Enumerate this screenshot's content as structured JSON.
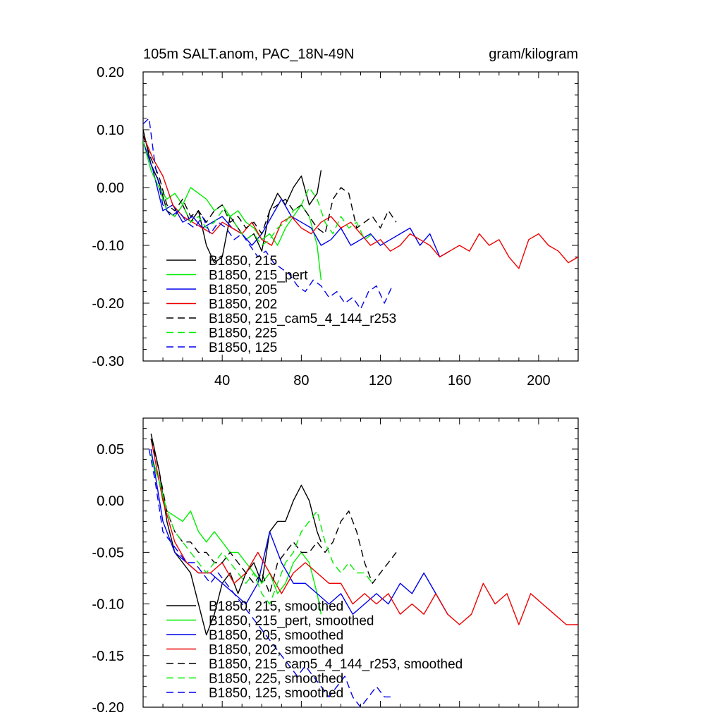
{
  "colors": {
    "black": "#000000",
    "green": "#00ee00",
    "blue": "#0000ee",
    "red": "#ee0000"
  },
  "chart_data": [
    {
      "type": "line",
      "title": "105m SALT.anom, PAC_18N-49N",
      "units": "gram/kilogram",
      "xlim": [
        0,
        220
      ],
      "ylim": [
        -0.3,
        0.2
      ],
      "xticks": [
        40,
        80,
        120,
        160,
        200
      ],
      "xtick_labels": [
        "40",
        "80",
        "120",
        "160",
        "200"
      ],
      "yticks": [
        0.2,
        0.1,
        0.0,
        -0.1,
        -0.2,
        -0.3
      ],
      "ytick_labels": [
        "0.20",
        "0.10",
        "0.00",
        "-0.10",
        "-0.20",
        "-0.30"
      ],
      "legend_position": "bottom-left",
      "series": [
        {
          "name": "B1850, 215",
          "color": "#000000",
          "dash": "solid",
          "x": [
            0,
            4,
            8,
            12,
            16,
            20,
            24,
            28,
            32,
            36,
            40,
            44,
            48,
            52,
            56,
            60,
            64,
            68,
            72,
            76,
            80,
            84,
            88,
            90
          ],
          "y": [
            0.1,
            0.04,
            0.01,
            -0.04,
            -0.05,
            -0.03,
            -0.06,
            -0.04,
            -0.1,
            -0.13,
            -0.12,
            -0.05,
            -0.07,
            -0.09,
            -0.08,
            -0.11,
            -0.04,
            -0.01,
            -0.03,
            0.0,
            0.02,
            -0.03,
            -0.01,
            0.03
          ]
        },
        {
          "name": "B1850, 215_pert",
          "color": "#00ee00",
          "dash": "solid",
          "x": [
            0,
            4,
            8,
            12,
            16,
            20,
            24,
            28,
            32,
            36,
            40,
            44,
            48,
            52,
            56,
            60,
            64,
            68,
            72,
            76,
            80,
            84,
            88,
            90
          ],
          "y": [
            0.08,
            0.03,
            0.0,
            -0.02,
            -0.01,
            -0.03,
            0.0,
            -0.01,
            -0.02,
            -0.04,
            -0.03,
            -0.05,
            -0.04,
            -0.06,
            -0.07,
            -0.09,
            -0.08,
            -0.1,
            -0.07,
            -0.05,
            -0.03,
            -0.05,
            -0.1,
            -0.16
          ]
        },
        {
          "name": "B1850, 205",
          "color": "#0000ee",
          "dash": "solid",
          "x": [
            0,
            5,
            10,
            15,
            20,
            25,
            30,
            35,
            40,
            45,
            50,
            55,
            60,
            65,
            70,
            75,
            80,
            85,
            90,
            95,
            100,
            105,
            110,
            115,
            120,
            125,
            130,
            135,
            140,
            145,
            150,
            155
          ],
          "y": [
            0.08,
            0.03,
            -0.04,
            -0.03,
            -0.06,
            -0.05,
            -0.07,
            -0.06,
            -0.05,
            -0.07,
            -0.08,
            -0.1,
            -0.08,
            -0.05,
            -0.02,
            -0.05,
            -0.06,
            -0.07,
            -0.1,
            -0.09,
            -0.07,
            -0.1,
            -0.09,
            -0.08,
            -0.1,
            -0.09,
            -0.08,
            -0.07,
            -0.1,
            -0.08,
            -0.12,
            -0.11
          ]
        },
        {
          "name": "B1850, 202",
          "color": "#ee0000",
          "dash": "solid",
          "x": [
            0,
            5,
            10,
            15,
            20,
            25,
            30,
            35,
            40,
            45,
            50,
            55,
            60,
            65,
            70,
            75,
            80,
            85,
            90,
            95,
            100,
            105,
            110,
            115,
            120,
            125,
            130,
            135,
            140,
            145,
            150,
            155,
            160,
            165,
            170,
            175,
            180,
            185,
            190,
            195,
            200,
            205,
            210,
            215,
            220
          ],
          "y": [
            0.09,
            0.05,
            0.02,
            -0.03,
            -0.05,
            -0.06,
            -0.07,
            -0.08,
            -0.06,
            -0.07,
            -0.08,
            -0.06,
            -0.09,
            -0.1,
            -0.06,
            -0.05,
            -0.07,
            -0.08,
            -0.06,
            -0.05,
            -0.07,
            -0.06,
            -0.08,
            -0.1,
            -0.09,
            -0.11,
            -0.1,
            -0.08,
            -0.09,
            -0.1,
            -0.12,
            -0.11,
            -0.1,
            -0.11,
            -0.08,
            -0.1,
            -0.09,
            -0.12,
            -0.14,
            -0.09,
            -0.08,
            -0.1,
            -0.11,
            -0.13,
            -0.12
          ]
        },
        {
          "name": "B1850, 215_cam5_4_144_r253",
          "color": "#000000",
          "dash": "dashed",
          "x": [
            0,
            4,
            8,
            12,
            16,
            20,
            24,
            28,
            32,
            36,
            40,
            44,
            48,
            52,
            56,
            60,
            64,
            68,
            72,
            76,
            80,
            84,
            88,
            92,
            96,
            100,
            104,
            108,
            112,
            116,
            120,
            124,
            128
          ],
          "y": [
            0.09,
            0.05,
            0.02,
            -0.03,
            -0.04,
            -0.02,
            -0.05,
            -0.04,
            -0.06,
            -0.04,
            -0.03,
            -0.06,
            -0.05,
            -0.07,
            -0.06,
            -0.08,
            -0.04,
            -0.03,
            -0.02,
            -0.04,
            -0.03,
            -0.05,
            -0.07,
            -0.08,
            -0.02,
            0.0,
            -0.01,
            -0.07,
            -0.06,
            -0.05,
            -0.07,
            -0.04,
            -0.06
          ]
        },
        {
          "name": "B1850, 225",
          "color": "#00ee00",
          "dash": "dashed",
          "x": [
            0,
            4,
            8,
            12,
            16,
            20,
            24,
            28,
            32,
            36,
            40,
            44,
            48,
            52,
            56,
            60,
            64,
            68,
            72,
            76,
            80,
            84,
            88,
            92,
            96,
            100,
            104,
            108,
            112,
            116
          ],
          "y": [
            0.08,
            0.03,
            0.0,
            -0.04,
            -0.05,
            -0.03,
            -0.06,
            -0.05,
            -0.07,
            -0.06,
            -0.04,
            -0.05,
            -0.07,
            -0.09,
            -0.08,
            -0.1,
            -0.09,
            -0.07,
            -0.06,
            -0.04,
            -0.03,
            0.0,
            -0.02,
            -0.06,
            -0.08,
            -0.05,
            -0.07,
            -0.06,
            -0.09,
            -0.08
          ]
        },
        {
          "name": "B1850, 125",
          "color": "#0000ee",
          "dash": "dashed",
          "x": [
            0,
            3,
            6,
            10,
            14,
            18,
            22,
            26,
            30,
            34,
            38,
            42,
            46,
            50,
            54,
            58,
            62,
            66,
            70,
            74,
            78,
            82,
            86,
            90,
            94,
            98,
            102,
            106,
            110,
            114,
            118,
            122,
            126
          ],
          "y": [
            0.11,
            0.12,
            0.04,
            -0.03,
            -0.05,
            -0.04,
            -0.06,
            -0.07,
            -0.05,
            -0.08,
            -0.06,
            -0.07,
            -0.09,
            -0.08,
            -0.1,
            -0.12,
            -0.11,
            -0.13,
            -0.14,
            -0.15,
            -0.17,
            -0.18,
            -0.16,
            -0.17,
            -0.19,
            -0.18,
            -0.2,
            -0.19,
            -0.21,
            -0.18,
            -0.17,
            -0.2,
            -0.17
          ]
        }
      ]
    },
    {
      "type": "line",
      "title": "",
      "xlim": [
        0,
        220
      ],
      "ylim": [
        -0.2,
        0.08
      ],
      "xticks": [
        40,
        80,
        120,
        160,
        200
      ],
      "yticks": [
        0.05,
        0.0,
        -0.05,
        -0.1,
        -0.15,
        -0.2
      ],
      "ytick_labels": [
        "0.05",
        "0.00",
        "-0.05",
        "-0.10",
        "-0.15",
        "-0.20"
      ],
      "legend_position": "bottom-left",
      "series": [
        {
          "name": "B1850, 215, smoothed",
          "color": "#000000",
          "dash": "solid",
          "x": [
            4,
            8,
            12,
            16,
            20,
            24,
            28,
            32,
            36,
            40,
            44,
            48,
            52,
            56,
            60,
            64,
            68,
            72,
            76,
            80,
            84,
            88,
            90
          ],
          "y": [
            0.065,
            0.03,
            -0.02,
            -0.05,
            -0.06,
            -0.07,
            -0.1,
            -0.13,
            -0.11,
            -0.08,
            -0.07,
            -0.09,
            -0.07,
            -0.06,
            -0.08,
            -0.03,
            -0.02,
            -0.02,
            0.0,
            0.015,
            0.0,
            -0.03,
            -0.04
          ]
        },
        {
          "name": "B1850, 215_pert, smoothed",
          "color": "#00ee00",
          "dash": "solid",
          "x": [
            4,
            8,
            12,
            16,
            20,
            24,
            28,
            32,
            36,
            40,
            44,
            48,
            52,
            56,
            60,
            64,
            68,
            72,
            76,
            80,
            84,
            88,
            90
          ],
          "y": [
            0.045,
            0.02,
            -0.01,
            -0.015,
            -0.02,
            -0.01,
            -0.03,
            -0.04,
            -0.03,
            -0.04,
            -0.05,
            -0.05,
            -0.06,
            -0.07,
            -0.08,
            -0.07,
            -0.09,
            -0.08,
            -0.06,
            -0.05,
            -0.06,
            -0.09,
            -0.11
          ]
        },
        {
          "name": "B1850, 205, smoothed",
          "color": "#0000ee",
          "dash": "solid",
          "x": [
            4,
            10,
            16,
            22,
            28,
            34,
            40,
            46,
            52,
            58,
            64,
            70,
            76,
            82,
            88,
            94,
            100,
            106,
            112,
            118,
            124,
            130,
            136,
            142,
            148,
            154
          ],
          "y": [
            0.05,
            -0.02,
            -0.05,
            -0.06,
            -0.07,
            -0.07,
            -0.08,
            -0.09,
            -0.1,
            -0.08,
            -0.03,
            -0.06,
            -0.08,
            -0.08,
            -0.09,
            -0.1,
            -0.09,
            -0.11,
            -0.1,
            -0.09,
            -0.1,
            -0.08,
            -0.09,
            -0.07,
            -0.09,
            -0.11
          ]
        },
        {
          "name": "B1850, 202, smoothed",
          "color": "#ee0000",
          "dash": "solid",
          "x": [
            4,
            10,
            16,
            22,
            28,
            34,
            40,
            46,
            52,
            58,
            64,
            70,
            76,
            82,
            88,
            94,
            100,
            106,
            112,
            118,
            124,
            130,
            136,
            142,
            148,
            154,
            160,
            166,
            172,
            178,
            184,
            190,
            196,
            202,
            208,
            214,
            220
          ],
          "y": [
            0.06,
            0.0,
            -0.04,
            -0.06,
            -0.07,
            -0.07,
            -0.06,
            -0.08,
            -0.07,
            -0.05,
            -0.07,
            -0.09,
            -0.07,
            -0.06,
            -0.07,
            -0.08,
            -0.08,
            -0.1,
            -0.09,
            -0.1,
            -0.09,
            -0.11,
            -0.1,
            -0.11,
            -0.09,
            -0.11,
            -0.12,
            -0.11,
            -0.08,
            -0.1,
            -0.09,
            -0.12,
            -0.09,
            -0.1,
            -0.11,
            -0.12,
            -0.12
          ]
        },
        {
          "name": "B1850, 215_cam5_4_144_r253, smoothed",
          "color": "#000000",
          "dash": "dashed",
          "x": [
            4,
            8,
            12,
            16,
            20,
            24,
            28,
            32,
            36,
            40,
            44,
            48,
            52,
            56,
            60,
            64,
            68,
            72,
            76,
            80,
            84,
            88,
            92,
            96,
            100,
            104,
            108,
            112,
            116,
            120,
            124,
            128
          ],
          "y": [
            0.06,
            0.03,
            -0.01,
            -0.03,
            -0.04,
            -0.04,
            -0.05,
            -0.05,
            -0.06,
            -0.06,
            -0.05,
            -0.06,
            -0.07,
            -0.08,
            -0.07,
            -0.09,
            -0.06,
            -0.05,
            -0.04,
            -0.05,
            -0.05,
            -0.04,
            -0.05,
            -0.04,
            -0.02,
            -0.01,
            -0.03,
            -0.06,
            -0.08,
            -0.07,
            -0.06,
            -0.05
          ]
        },
        {
          "name": "B1850, 225, smoothed",
          "color": "#00ee00",
          "dash": "dashed",
          "x": [
            4,
            8,
            12,
            16,
            20,
            24,
            28,
            32,
            36,
            40,
            44,
            48,
            52,
            56,
            60,
            64,
            68,
            72,
            76,
            80,
            84,
            88,
            92,
            96,
            100,
            104,
            108,
            112,
            116
          ],
          "y": [
            0.04,
            0.02,
            -0.01,
            -0.03,
            -0.04,
            -0.05,
            -0.06,
            -0.07,
            -0.06,
            -0.05,
            -0.06,
            -0.07,
            -0.08,
            -0.07,
            -0.09,
            -0.1,
            -0.08,
            -0.06,
            -0.05,
            -0.03,
            -0.02,
            -0.01,
            -0.04,
            -0.06,
            -0.07,
            -0.06,
            -0.07,
            -0.07,
            -0.08
          ]
        },
        {
          "name": "B1850, 125, smoothed",
          "color": "#0000ee",
          "dash": "dashed",
          "x": [
            3,
            6,
            10,
            14,
            18,
            22,
            26,
            30,
            34,
            38,
            42,
            46,
            50,
            54,
            58,
            62,
            66,
            70,
            74,
            78,
            82,
            86,
            90,
            94,
            98,
            102,
            106,
            110,
            114,
            118,
            122,
            126
          ],
          "y": [
            0.05,
            0.02,
            -0.03,
            -0.04,
            -0.05,
            -0.06,
            -0.06,
            -0.07,
            -0.08,
            -0.07,
            -0.08,
            -0.09,
            -0.1,
            -0.11,
            -0.12,
            -0.13,
            -0.14,
            -0.15,
            -0.16,
            -0.17,
            -0.16,
            -0.17,
            -0.18,
            -0.19,
            -0.18,
            -0.17,
            -0.19,
            -0.2,
            -0.19,
            -0.18,
            -0.19,
            -0.19
          ]
        }
      ]
    }
  ]
}
